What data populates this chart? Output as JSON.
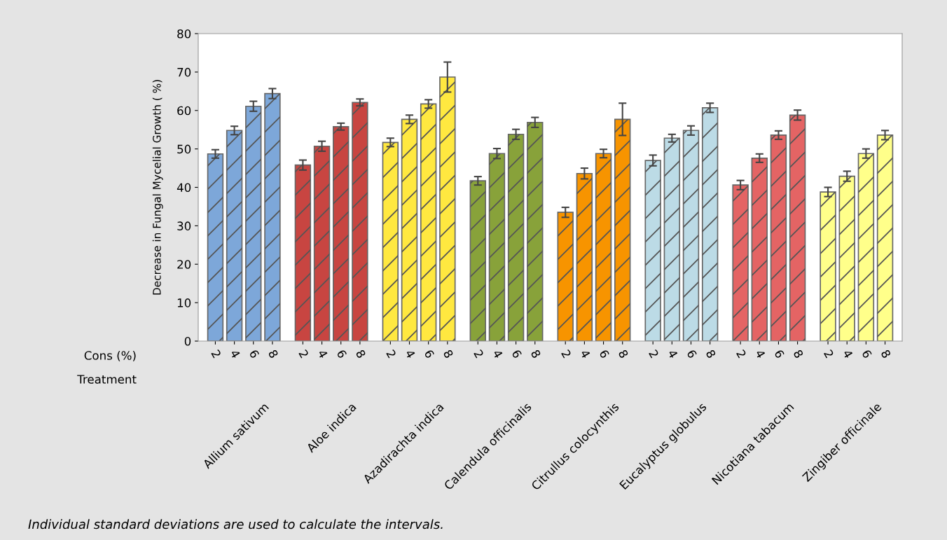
{
  "chart_data": {
    "type": "bar",
    "ylabel": "Decrease in Fungal Mycelial Growth ( %)",
    "categories": [
      "2",
      "4",
      "6",
      "8",
      "2",
      "4",
      "6",
      "8",
      "2",
      "4",
      "6",
      "8",
      "2",
      "4",
      "6",
      "8",
      "2",
      "4",
      "6",
      "8",
      "2",
      "4",
      "6",
      "8",
      "2",
      "4",
      "6",
      "8",
      "2",
      "4",
      "6",
      "8"
    ],
    "values": [
      48.7,
      54.8,
      61.1,
      64.4,
      45.8,
      50.7,
      55.8,
      62.1,
      51.7,
      57.7,
      61.7,
      68.7,
      41.7,
      48.8,
      53.8,
      56.9,
      33.5,
      43.6,
      48.8,
      57.7,
      47.0,
      52.8,
      54.8,
      60.7,
      40.6,
      47.6,
      53.6,
      58.8,
      38.8,
      42.9,
      48.8,
      53.6
    ],
    "errors": [
      1.1,
      1.1,
      1.3,
      1.3,
      1.3,
      1.3,
      0.9,
      0.9,
      1.1,
      1.1,
      1.1,
      3.9,
      1.1,
      1.3,
      1.3,
      1.3,
      1.3,
      1.4,
      1.1,
      4.2,
      1.4,
      1.0,
      1.2,
      1.2,
      1.2,
      1.1,
      1.1,
      1.3,
      1.2,
      1.3,
      1.2,
      1.2
    ],
    "colors": [
      "#7da7d9",
      "#7da7d9",
      "#7da7d9",
      "#7da7d9",
      "#c84541",
      "#c84541",
      "#c84541",
      "#c84541",
      "#ffe840",
      "#ffe840",
      "#ffe840",
      "#ffe840",
      "#88a23a",
      "#88a23a",
      "#88a23a",
      "#88a23a",
      "#f79400",
      "#f79400",
      "#f79400",
      "#f79400",
      "#bcdbe6",
      "#bcdbe6",
      "#bcdbe6",
      "#bcdbe6",
      "#e46464",
      "#e46464",
      "#e46464",
      "#e46464",
      "#ffff8a",
      "#ffff8a",
      "#ffff8a",
      "#ffff8a"
    ],
    "ylim": [
      0,
      80
    ],
    "yticks": [
      0,
      10,
      20,
      30,
      40,
      50,
      60,
      70,
      80
    ],
    "grid": false,
    "legend": false,
    "annotations": [
      "Cons (%)",
      "Treatment",
      "Allium sativum",
      "Aloe indica",
      "Azadirachta indica",
      "Calendula officinalis",
      "Citrullus colocynthis",
      "Eucalyptus globulus",
      "Nicotiana tabacum",
      "Zingiber officinale",
      "Individual standard deviations are used to calculate the intervals."
    ]
  }
}
